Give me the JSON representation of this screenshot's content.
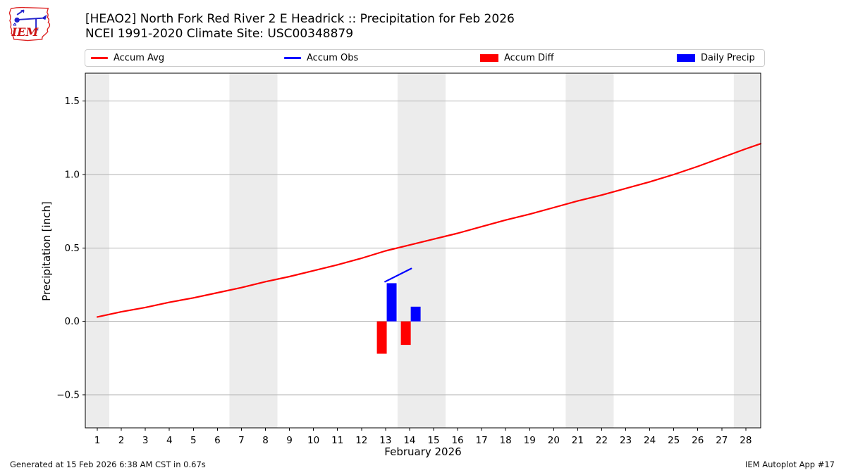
{
  "header": {
    "title_line1": "[HEAO2] North Fork Red River 2 E Headrick :: Precipitation for Feb 2026",
    "title_line2": "NCEI 1991-2020 Climate Site: USC00348879",
    "logo_text": "IEM"
  },
  "legend": {
    "items": [
      {
        "label": "Accum Avg",
        "type": "line",
        "color": "#ff0000"
      },
      {
        "label": "Accum Obs",
        "type": "line",
        "color": "#0000ff"
      },
      {
        "label": "Accum Diff",
        "type": "rect",
        "color": "#ff0000"
      },
      {
        "label": "Daily Precip",
        "type": "rect",
        "color": "#0000ff"
      }
    ]
  },
  "axes": {
    "ylabel": "Precipitation [inch]",
    "xlabel": "February 2026"
  },
  "footer": {
    "generated": "Generated at 15 Feb 2026 6:38 AM CST in 0.67s",
    "app": "IEM Autoplot App #17"
  },
  "chart_data": {
    "type": "line+bar",
    "title": "[HEAO2] North Fork Red River 2 E Headrick :: Precipitation for Feb 2026",
    "subtitle": "NCEI 1991-2020 Climate Site: USC00348879",
    "xlabel": "February 2026",
    "ylabel": "Precipitation [inch]",
    "xlim": [
      0.5,
      28.62
    ],
    "ylim": [
      -0.725,
      1.69
    ],
    "x_ticks": [
      1,
      2,
      3,
      4,
      5,
      6,
      7,
      8,
      9,
      10,
      11,
      12,
      13,
      14,
      15,
      16,
      17,
      18,
      19,
      20,
      21,
      22,
      23,
      24,
      25,
      26,
      27,
      28
    ],
    "y_ticks": [
      -0.5,
      0.0,
      0.5,
      1.0,
      1.5
    ],
    "grid": "horizontal",
    "legend_position": "top",
    "weekend_bands": [
      [
        0.5,
        1.5
      ],
      [
        6.5,
        8.5
      ],
      [
        13.5,
        15.5
      ],
      [
        20.5,
        22.5
      ],
      [
        27.5,
        28.62
      ]
    ],
    "colors": {
      "band": "#ececec",
      "grid": "#b2b2b2",
      "spine": "#000000"
    },
    "series": [
      {
        "name": "Accum Avg",
        "type": "line",
        "color": "#ff0000",
        "x": [
          1,
          2,
          3,
          4,
          5,
          6,
          7,
          8,
          9,
          10,
          11,
          12,
          13,
          14,
          15,
          16,
          17,
          18,
          19,
          20,
          21,
          22,
          23,
          24,
          25,
          26,
          27,
          28,
          28.62
        ],
        "y": [
          0.03,
          0.065,
          0.095,
          0.13,
          0.16,
          0.195,
          0.23,
          0.27,
          0.305,
          0.345,
          0.385,
          0.43,
          0.48,
          0.52,
          0.56,
          0.6,
          0.645,
          0.69,
          0.73,
          0.775,
          0.82,
          0.86,
          0.905,
          0.95,
          1.0,
          1.055,
          1.115,
          1.175,
          1.21
        ]
      },
      {
        "name": "Accum Obs",
        "type": "line",
        "color": "#0000ff",
        "x": [
          12.98,
          14.07
        ],
        "y": [
          0.27,
          0.36
        ]
      },
      {
        "name": "Accum Diff",
        "type": "bar",
        "color": "#ff0000",
        "bar_offset": -0.155,
        "bar_width": 0.41,
        "x": [
          13,
          14
        ],
        "y": [
          -0.22,
          -0.16
        ]
      },
      {
        "name": "Daily Precip",
        "type": "bar",
        "color": "#0000ff",
        "bar_offset": 0.255,
        "bar_width": 0.41,
        "x": [
          13,
          14
        ],
        "y": [
          0.26,
          0.1
        ]
      }
    ]
  }
}
